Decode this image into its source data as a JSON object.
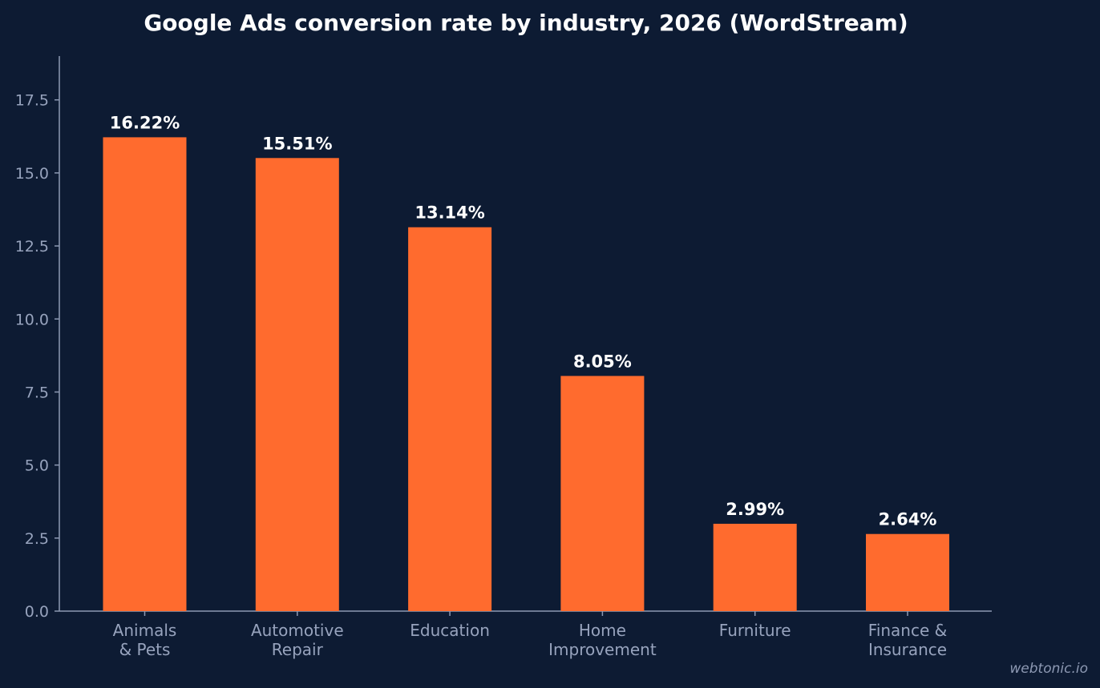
{
  "chart_data": {
    "type": "bar",
    "title": "Google Ads conversion rate by industry, 2026 (WordStream)",
    "xlabel": "",
    "ylabel": "",
    "categories": [
      [
        "Animals",
        "& Pets"
      ],
      [
        "Automotive",
        "Repair"
      ],
      [
        "Education"
      ],
      [
        "Home",
        "Improvement"
      ],
      [
        "Furniture"
      ],
      [
        "Finance &",
        "Insurance"
      ]
    ],
    "values": [
      16.22,
      15.51,
      13.14,
      8.05,
      2.99,
      2.64
    ],
    "data_labels": [
      "16.22%",
      "15.51%",
      "13.14%",
      "8.05%",
      "2.99%",
      "2.64%"
    ],
    "yticks": [
      "0.0",
      "2.5",
      "5.0",
      "7.5",
      "10.0",
      "12.5",
      "15.0",
      "17.5"
    ],
    "ylim": [
      0,
      19.0
    ],
    "grid": false,
    "bar_color": "#ff6b2e",
    "background": "#0d1b33"
  },
  "watermark": "webtonic.io"
}
